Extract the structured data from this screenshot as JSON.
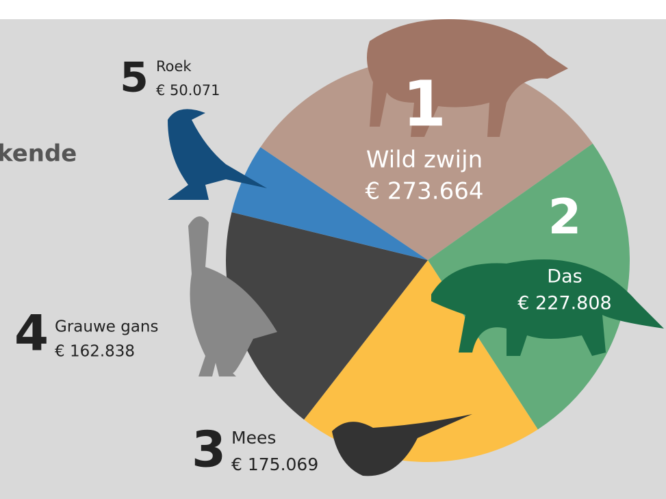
{
  "chart_data": {
    "type": "pie",
    "title": "kende",
    "categories": [
      "Wild zwijn",
      "Das",
      "Mees",
      "Grauwe gans",
      "Roek"
    ],
    "values": [
      273664,
      227808,
      175069,
      162838,
      50071
    ],
    "value_labels": [
      "€ 273.664",
      "€ 227.808",
      "€ 175.069",
      "€ 162.838",
      "€ 50.071"
    ],
    "ranks": [
      1,
      2,
      3,
      4,
      5
    ],
    "colors": [
      "#b8998b",
      "#63ac7b",
      "#fcbf45",
      "#444444",
      "#3a82c0"
    ]
  }
}
